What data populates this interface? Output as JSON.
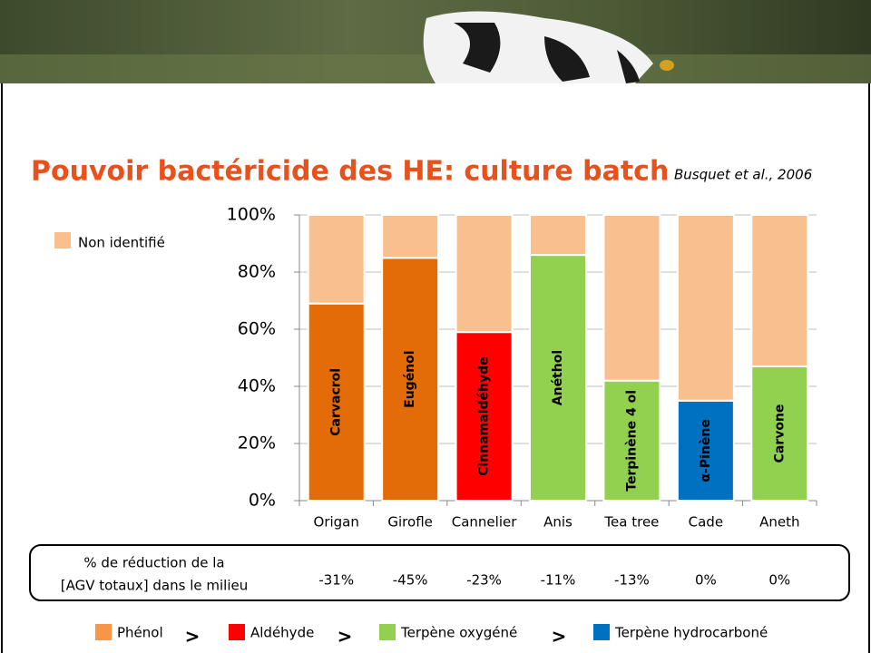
{
  "chart_data": {
    "type": "stacked-bar",
    "title": "Pouvoir bactéricide des HE: culture batch",
    "citation": "Busquet et al., 2006",
    "categories": [
      "Origan",
      "Girofle",
      "Cannelier",
      "Anis",
      "Tea tree",
      "Cade",
      "Aneth"
    ],
    "series": [
      {
        "values": [
          69,
          85,
          59,
          86,
          42,
          35,
          47
        ],
        "colors": [
          "#e36c09",
          "#e36c09",
          "#ff0000",
          "#92d050",
          "#92d050",
          "#0070c0",
          "#92d050"
        ],
        "labels": [
          "Carvacrol",
          "Eugénol",
          "Cinnamaldéhyde",
          "Anéthol",
          "Terpinène 4 ol",
          "α-Pinène",
          "Carvone"
        ]
      },
      {
        "name": "Non identifié",
        "color": "#fabf8f",
        "values": [
          31,
          15,
          41,
          14,
          58,
          65,
          53
        ]
      }
    ],
    "ylim": [
      0,
      100
    ],
    "yticks": [
      {
        "value": 0,
        "label": "0%"
      },
      {
        "value": 20,
        "label": "20%"
      },
      {
        "value": 40,
        "label": "40%"
      },
      {
        "value": 60,
        "label": "60%"
      },
      {
        "value": 80,
        "label": "80%"
      },
      {
        "value": 100,
        "label": "100%"
      }
    ],
    "grid": true
  },
  "reduction_row": {
    "label": [
      "% de réduction de la",
      "[AGV totaux] dans le milieu"
    ],
    "values": [
      -31,
      -45,
      -23,
      -11,
      -13,
      0,
      0
    ],
    "value_labels": [
      "-31%",
      "-45%",
      "-23%",
      "-11%",
      "-13%",
      "0%",
      "0%"
    ]
  },
  "class_legend": {
    "separator": ">",
    "items": [
      {
        "name": "Phénol",
        "color": "#f79646"
      },
      {
        "name": "Aldéhyde",
        "color": "#ff0000"
      },
      {
        "name": "Terpène oxygéné",
        "color": "#92d050"
      },
      {
        "name": "Terpène hydrocarboné",
        "color": "#0070c0"
      }
    ]
  }
}
